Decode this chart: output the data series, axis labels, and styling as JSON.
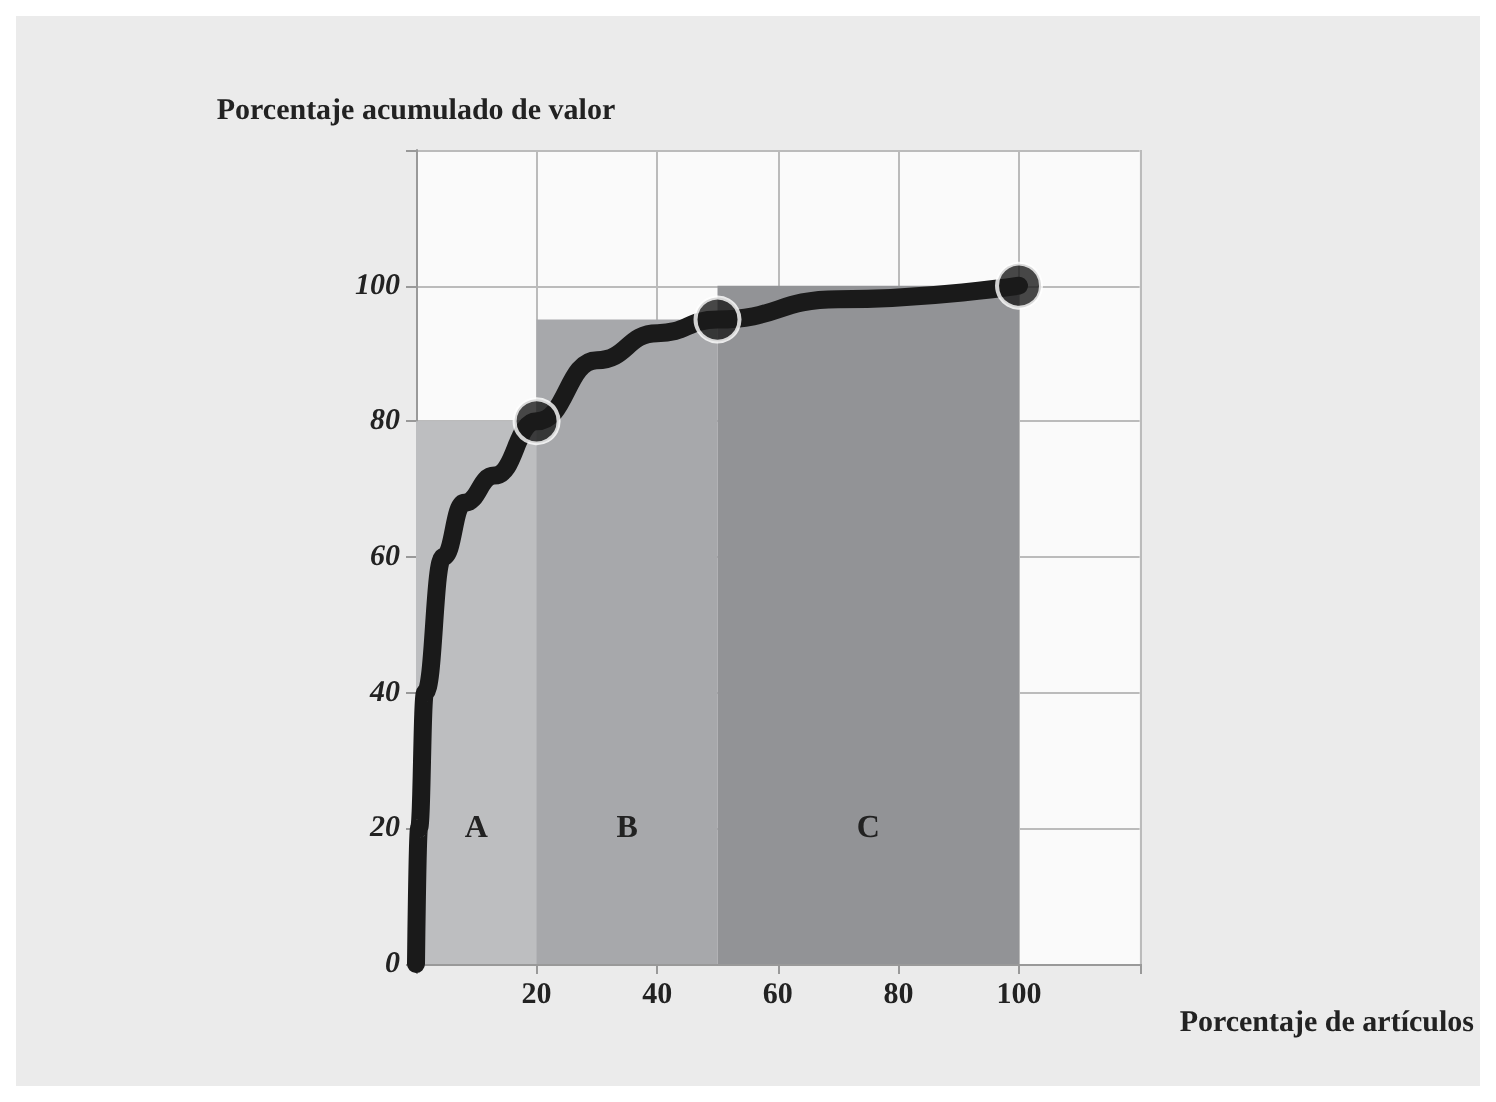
{
  "chart_data": {
    "type": "area",
    "xlabel": "Porcentaje de artículos",
    "ylabel": "Porcentaje acumulado de valor",
    "xlim": [
      0,
      120
    ],
    "ylim": [
      0,
      120
    ],
    "xticks": [
      {
        "value": 0,
        "label": null
      },
      20,
      40,
      60,
      80,
      100,
      {
        "value": 120,
        "label": null
      }
    ],
    "yticks": [
      0,
      20,
      40,
      60,
      80,
      100,
      {
        "value": 120,
        "label": null
      }
    ],
    "grid": true,
    "series": [
      {
        "color": "#bdbec0",
        "x": [
          0,
          20
        ],
        "values": [
          80,
          80
        ]
      },
      {
        "color": "#a7a8ab",
        "x": [
          20,
          50
        ],
        "values": [
          95,
          95
        ]
      },
      {
        "color": "#929396",
        "x": [
          50,
          100
        ],
        "values": [
          100,
          100
        ]
      },
      {
        "type": "line",
        "color": "#1a1a1a",
        "marker": "none",
        "x": [
          0,
          0.5,
          1.5,
          4.5,
          8,
          13,
          20,
          30,
          40,
          50,
          70,
          100
        ],
        "values": [
          0,
          20,
          40,
          60,
          68,
          72,
          80,
          89,
          93,
          95,
          98,
          100
        ]
      },
      {
        "type": "scatter",
        "color": "#1a1a1a",
        "marker": "circle",
        "x": [
          20,
          50,
          100
        ],
        "values": [
          80,
          95,
          100
        ]
      }
    ],
    "annotations": [
      "A",
      "B",
      "C"
    ]
  }
}
